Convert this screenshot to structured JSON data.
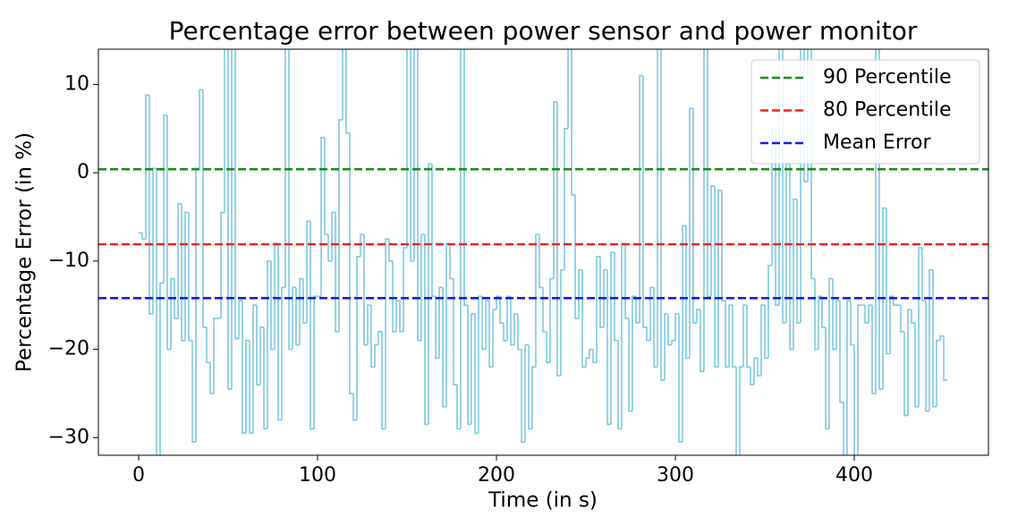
{
  "chart_data": {
    "type": "step",
    "drawstyle": "steps-post",
    "title": "Percentage error between power sensor and power monitor",
    "xlabel": "Time (in s)",
    "ylabel": "Percentage Error (in %)",
    "xlim": [
      -22.5,
      475
    ],
    "ylim": [
      -32,
      14
    ],
    "xticks": [
      0,
      100,
      200,
      300,
      400
    ],
    "yticks": [
      {
        "value": -30,
        "label": "−30"
      },
      {
        "value": -20,
        "label": "−20"
      },
      {
        "value": -10,
        "label": "−10"
      },
      0,
      10
    ],
    "legend": "upper right",
    "x": [
      0,
      2,
      4,
      6,
      8,
      10,
      12,
      14,
      16,
      18,
      20,
      22,
      24,
      26,
      28,
      30,
      32,
      34,
      36,
      38,
      40,
      42,
      44,
      46,
      48,
      50,
      52,
      54,
      56,
      58,
      60,
      62,
      64,
      66,
      68,
      70,
      72,
      74,
      76,
      78,
      80,
      82,
      84,
      86,
      88,
      90,
      92,
      94,
      96,
      98,
      100,
      102,
      104,
      106,
      108,
      110,
      112,
      114,
      116,
      118,
      120,
      122,
      124,
      126,
      128,
      130,
      132,
      134,
      136,
      138,
      140,
      142,
      144,
      146,
      148,
      150,
      152,
      154,
      156,
      158,
      160,
      162,
      164,
      166,
      168,
      170,
      172,
      174,
      176,
      178,
      180,
      182,
      184,
      186,
      188,
      190,
      192,
      194,
      196,
      198,
      200,
      202,
      204,
      206,
      208,
      210,
      212,
      214,
      216,
      218,
      220,
      222,
      224,
      226,
      228,
      230,
      232,
      234,
      236,
      238,
      240,
      242,
      244,
      246,
      248,
      250,
      252,
      254,
      256,
      258,
      260,
      262,
      264,
      266,
      268,
      270,
      272,
      274,
      276,
      278,
      280,
      282,
      284,
      286,
      288,
      290,
      292,
      294,
      296,
      298,
      300,
      302,
      304,
      306,
      308,
      310,
      312,
      314,
      316,
      318,
      320,
      322,
      324,
      326,
      328,
      330,
      332,
      334,
      336,
      338,
      340,
      342,
      344,
      346,
      348,
      350,
      352,
      354,
      356,
      358,
      360,
      362,
      364,
      366,
      368,
      370,
      372,
      374,
      376,
      378,
      380,
      382,
      384,
      386,
      388,
      390,
      392,
      394,
      396,
      398,
      400,
      402,
      404,
      406,
      408,
      410,
      412,
      414,
      416,
      418,
      420,
      422,
      424,
      426,
      428,
      430,
      432,
      434,
      436,
      438,
      440,
      442,
      444,
      446,
      448,
      450,
      452
    ],
    "series": [
      {
        "color": "#7ec8e3",
        "values": [
          -6.8,
          -7.5,
          8.8,
          -16,
          0.5,
          -40,
          -12.5,
          6.5,
          -20,
          -12,
          -16.5,
          -3.5,
          -19,
          -4.5,
          -19,
          -30.5,
          0.5,
          9.4,
          -17.5,
          -21.5,
          -25,
          -16.5,
          -16.5,
          -4.5,
          20,
          -24.5,
          20,
          -18.8,
          -14.5,
          -29.5,
          -19,
          -29.5,
          -15,
          -24,
          -17.5,
          -29,
          -10,
          -20,
          -8,
          -28,
          -13,
          20,
          -20,
          -13,
          -19.5,
          -12,
          -17,
          -5.5,
          -29,
          -14,
          -14,
          4,
          -7,
          -10,
          -4.5,
          -18,
          6,
          20,
          4.5,
          -25,
          -28,
          -9.5,
          -7,
          -19.5,
          -15,
          -22,
          -19.5,
          -18,
          -29,
          -7.5,
          -10,
          -18,
          -14.5,
          -18,
          -8.5,
          20,
          -10,
          20,
          -19,
          -7,
          -28.5,
          1,
          -14,
          -21,
          -13,
          -26.5,
          -8,
          -12,
          -24,
          -29,
          20,
          -15,
          -28.5,
          -16,
          -29.5,
          -14,
          -20,
          -14.5,
          -22,
          -15.5,
          -14,
          -17,
          -19,
          -14,
          -19.5,
          -16,
          -20,
          -30.5,
          -19.5,
          -29,
          -22,
          -7,
          -13,
          -18,
          -21.5,
          -12,
          8,
          -23,
          -11,
          5,
          20,
          -2.5,
          -16.5,
          -11,
          -22,
          -21,
          -20,
          -21.5,
          -9.5,
          -17.5,
          -11,
          -28.5,
          -9,
          -19,
          -29,
          -8,
          -16.5,
          -27,
          -14,
          -17,
          11,
          -17.5,
          -19,
          -13,
          -22,
          20,
          -23.5,
          -16,
          -19.5,
          -19,
          -16,
          -30.5,
          -6,
          -21,
          7.3,
          -17,
          -15.5,
          -22.5,
          20,
          -14,
          -1.5,
          -22,
          -2,
          -14.5,
          -22,
          -15,
          -22,
          -40,
          -22,
          -15,
          -22,
          -24,
          -21,
          -23,
          -15,
          -21,
          -10.5,
          5,
          -15,
          20,
          -17,
          1,
          -20,
          -3,
          -17,
          20,
          -1,
          20,
          -12,
          -20,
          -14,
          -17.5,
          -29,
          -12,
          -20,
          -14.5,
          -26,
          -40,
          -14.5,
          -19.5,
          -40,
          -15,
          -15,
          -17,
          -15,
          -25,
          20,
          -24.5,
          -4,
          -20.5,
          -14,
          -15,
          -15,
          -18,
          -27.5,
          -15.5,
          -17,
          -26.5,
          -8.5,
          -14.5,
          -27,
          -11,
          -26.5,
          -19,
          -18.5,
          -23.5,
          -23.5
        ]
      }
    ],
    "hlines": [
      {
        "name": "90 Percentile",
        "color": "#1a8c1a",
        "value": 0.4
      },
      {
        "name": "80 Percentile",
        "color": "#ee2222",
        "value": -8.1
      },
      {
        "name": "Mean Error",
        "color": "#1a1aee",
        "value": -14.2
      }
    ]
  }
}
